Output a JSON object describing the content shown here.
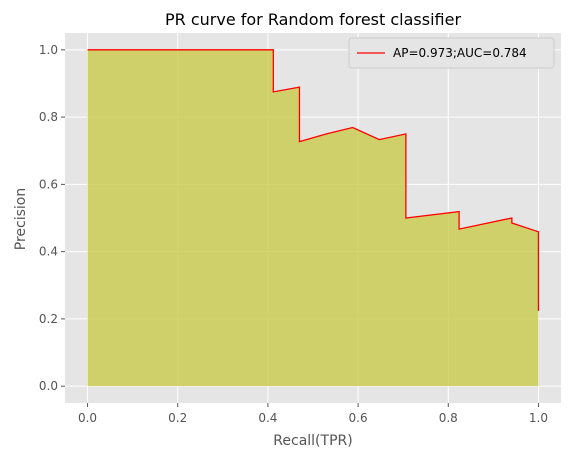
{
  "chart_data": {
    "type": "area",
    "title": "PR curve for Random forest classifier",
    "xlabel": "Recall(TPR)",
    "ylabel": "Precision",
    "xlim": [
      -0.05,
      1.05
    ],
    "ylim": [
      -0.05,
      1.05
    ],
    "xticks": [
      0.0,
      0.2,
      0.4,
      0.6,
      0.8,
      1.0
    ],
    "xtick_labels": [
      "0.0",
      "0.2",
      "0.4",
      "0.6",
      "0.8",
      "1.0"
    ],
    "yticks": [
      0.0,
      0.2,
      0.4,
      0.6,
      0.8,
      1.0
    ],
    "ytick_labels": [
      "0.0",
      "0.2",
      "0.4",
      "0.6",
      "0.8",
      "1.0"
    ],
    "grid": true,
    "legend": {
      "position": "top-right",
      "entries": [
        "AP=0.973;AUC=0.784"
      ]
    },
    "series": [
      {
        "name": "AP=0.973;AUC=0.784",
        "line_color": "#ff0000",
        "fill_color": "#cccc55",
        "points": [
          [
            0.0,
            1.0
          ],
          [
            0.412,
            1.0
          ],
          [
            0.412,
            0.875
          ],
          [
            0.47,
            0.889
          ],
          [
            0.47,
            0.727
          ],
          [
            0.53,
            0.75
          ],
          [
            0.588,
            0.769
          ],
          [
            0.647,
            0.733
          ],
          [
            0.706,
            0.75
          ],
          [
            0.706,
            0.5
          ],
          [
            0.824,
            0.519
          ],
          [
            0.824,
            0.467
          ],
          [
            0.941,
            0.5
          ],
          [
            0.941,
            0.485
          ],
          [
            1.0,
            0.459
          ],
          [
            1.0,
            0.224
          ]
        ]
      }
    ]
  },
  "colors": {
    "plot_background": "#e5e5e5",
    "grid": "#ffffff"
  }
}
